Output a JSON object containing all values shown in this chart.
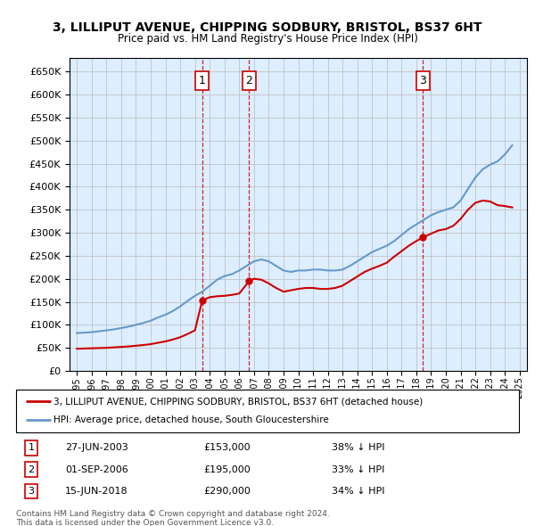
{
  "title": "3, LILLIPUT AVENUE, CHIPPING SODBURY, BRISTOL, BS37 6HT",
  "subtitle": "Price paid vs. HM Land Registry's House Price Index (HPI)",
  "legend_line1": "3, LILLIPUT AVENUE, CHIPPING SODBURY, BRISTOL, BS37 6HT (detached house)",
  "legend_line2": "HPI: Average price, detached house, South Gloucestershire",
  "footer1": "Contains HM Land Registry data © Crown copyright and database right 2024.",
  "footer2": "This data is licensed under the Open Government Licence v3.0.",
  "sale_labels": [
    "1",
    "2",
    "3"
  ],
  "sale_dates": [
    "27-JUN-2003",
    "01-SEP-2006",
    "15-JUN-2018"
  ],
  "sale_prices": [
    153000,
    195000,
    290000
  ],
  "sale_pct": [
    "38% ↓ HPI",
    "33% ↓ HPI",
    "34% ↓ HPI"
  ],
  "sale_years": [
    2003.49,
    2006.67,
    2018.46
  ],
  "hpi_color": "#6699cc",
  "price_color": "#cc0000",
  "vline_color": "#cc0000",
  "background_color": "#ddeeff",
  "grid_color": "#bbbbbb",
  "ylim": [
    0,
    680000
  ],
  "yticks": [
    0,
    50000,
    100000,
    150000,
    200000,
    250000,
    300000,
    350000,
    400000,
    450000,
    500000,
    550000,
    600000,
    650000
  ],
  "hpi_years": [
    1995.0,
    1995.5,
    1996.0,
    1996.5,
    1997.0,
    1997.5,
    1998.0,
    1998.5,
    1999.0,
    1999.5,
    2000.0,
    2000.5,
    2001.0,
    2001.5,
    2002.0,
    2002.5,
    2003.0,
    2003.5,
    2004.0,
    2004.5,
    2005.0,
    2005.5,
    2006.0,
    2006.5,
    2007.0,
    2007.5,
    2008.0,
    2008.5,
    2009.0,
    2009.5,
    2010.0,
    2010.5,
    2011.0,
    2011.5,
    2012.0,
    2012.5,
    2013.0,
    2013.5,
    2014.0,
    2014.5,
    2015.0,
    2015.5,
    2016.0,
    2016.5,
    2017.0,
    2017.5,
    2018.0,
    2018.5,
    2019.0,
    2019.5,
    2020.0,
    2020.5,
    2021.0,
    2021.5,
    2022.0,
    2022.5,
    2023.0,
    2023.5,
    2024.0,
    2024.5
  ],
  "hpi_values": [
    82000,
    83000,
    84000,
    86000,
    88000,
    90000,
    93000,
    96000,
    100000,
    104000,
    109000,
    116000,
    122000,
    130000,
    140000,
    152000,
    163000,
    172000,
    185000,
    198000,
    206000,
    210000,
    218000,
    228000,
    238000,
    242000,
    238000,
    228000,
    218000,
    215000,
    218000,
    218000,
    220000,
    220000,
    218000,
    218000,
    220000,
    228000,
    238000,
    248000,
    258000,
    265000,
    272000,
    282000,
    295000,
    308000,
    318000,
    328000,
    338000,
    345000,
    350000,
    355000,
    370000,
    395000,
    420000,
    438000,
    448000,
    455000,
    470000,
    490000
  ],
  "price_years": [
    1995.0,
    1995.5,
    1996.0,
    1996.5,
    1997.0,
    1997.5,
    1998.0,
    1998.5,
    1999.0,
    1999.5,
    2000.0,
    2000.5,
    2001.0,
    2001.5,
    2002.0,
    2002.5,
    2003.0,
    2003.49,
    2004.0,
    2004.5,
    2005.0,
    2005.5,
    2006.0,
    2006.67,
    2007.0,
    2007.5,
    2008.0,
    2008.5,
    2009.0,
    2009.5,
    2010.0,
    2010.5,
    2011.0,
    2011.5,
    2012.0,
    2012.5,
    2013.0,
    2013.5,
    2014.0,
    2014.5,
    2015.0,
    2015.5,
    2016.0,
    2016.5,
    2017.0,
    2017.5,
    2018.0,
    2018.46,
    2019.0,
    2019.5,
    2020.0,
    2020.5,
    2021.0,
    2021.5,
    2022.0,
    2022.5,
    2023.0,
    2023.5,
    2024.0,
    2024.5
  ],
  "price_values": [
    48000,
    48500,
    49000,
    49500,
    50000,
    51000,
    52000,
    53000,
    54500,
    56000,
    58000,
    61000,
    64000,
    68000,
    73000,
    80000,
    88000,
    153000,
    160000,
    162000,
    163000,
    165000,
    168000,
    195000,
    200000,
    198000,
    190000,
    180000,
    172000,
    175000,
    178000,
    180000,
    180000,
    178000,
    178000,
    180000,
    185000,
    195000,
    205000,
    215000,
    222000,
    228000,
    235000,
    248000,
    260000,
    272000,
    282000,
    290000,
    298000,
    305000,
    308000,
    315000,
    330000,
    350000,
    365000,
    370000,
    368000,
    360000,
    358000,
    355000
  ]
}
